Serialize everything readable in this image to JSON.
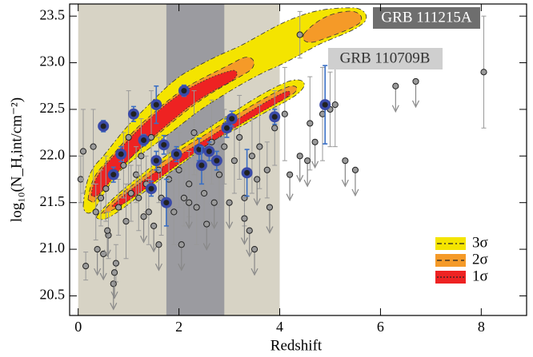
{
  "chart_data": {
    "type": "scatter",
    "xlabel": "Redshift",
    "ylabel": "log₁₀(N_H,int/cm⁻²)",
    "xlim": [
      -0.17,
      8.9
    ],
    "ylim": [
      20.29,
      23.63
    ],
    "xticks": [
      0,
      2,
      4,
      6,
      8
    ],
    "yticks": [
      20.5,
      {
        "value": 21,
        "label": "21.0"
      },
      21.5,
      {
        "value": 22,
        "label": "22.0"
      },
      22.5,
      {
        "value": 23,
        "label": "23.0"
      },
      23.5
    ],
    "bands": [
      {
        "x": [
          0,
          4
        ],
        "color": "#d7d3c5"
      },
      {
        "x": [
          1.75,
          2.9
        ],
        "color": "#9b9ba0"
      }
    ],
    "annotations": [
      "GRB 111215A",
      "GRB 110709B"
    ],
    "legend": [
      {
        "label": "3σ",
        "color": "#f4e400",
        "dash": "6 3 2 3"
      },
      {
        "label": "2σ",
        "color": "#f59a28",
        "dash": "6 4"
      },
      {
        "label": "1σ",
        "color": "#ee2222",
        "dash": "2 2"
      }
    ],
    "series": [
      {
        "color": "#9a9a9a",
        "x": [
          0.05,
          0.1,
          0.15,
          0.3,
          0.35,
          0.45,
          0.55,
          0.6,
          0.75,
          0.8,
          0.9,
          0.95,
          1.0,
          1.05,
          1.15,
          1.2,
          1.25,
          1.35,
          1.4,
          1.45,
          1.6,
          1.65,
          1.8,
          1.9,
          2.0,
          2.1,
          2.2,
          2.3,
          2.35,
          2.5,
          2.65,
          2.8,
          2.9,
          3.1,
          3.2,
          3.3,
          3.45,
          3.6,
          3.75,
          3.9,
          4.1,
          4.4,
          4.6,
          4.85,
          5.0,
          5.1,
          8.05
        ],
        "values": [
          21.75,
          22.05,
          20.82,
          22.1,
          21.4,
          21.55,
          21.65,
          21.15,
          20.85,
          21.45,
          21.9,
          21.3,
          22.2,
          21.6,
          21.8,
          21.55,
          22.0,
          21.7,
          21.4,
          22.2,
          21.85,
          21.55,
          21.75,
          21.4,
          21.85,
          21.55,
          21.7,
          22.25,
          21.45,
          21.6,
          22.15,
          21.8,
          22.1,
          21.95,
          22.2,
          21.55,
          22.0,
          22.1,
          21.85,
          22.3,
          22.45,
          23.3,
          22.35,
          22.45,
          22.5,
          22.55,
          22.9
        ],
        "errors": [
          0.25,
          0.45,
          0.15,
          0.4,
          0.3,
          0.3,
          0.35,
          0.25,
          0.2,
          0.3,
          0.35,
          0.4,
          0.5,
          0.3,
          0.3,
          0.35,
          0.4,
          0.3,
          0.35,
          0.5,
          0.35,
          0.4,
          0.3,
          0.35,
          0.4,
          0.3,
          0.35,
          0.45,
          0.4,
          0.3,
          0.45,
          0.35,
          0.4,
          0.35,
          0.45,
          0.3,
          0.4,
          0.45,
          0.3,
          0.4,
          0.5,
          0.25,
          0.5,
          0.5,
          0.4,
          0.45,
          0.6
        ]
      },
      {
        "color": "#9a9a9a",
        "upper_limit": true,
        "x": [
          0.38,
          0.5,
          0.58,
          0.7,
          0.72,
          1.3,
          1.5,
          1.6,
          2.05,
          2.2,
          2.55,
          2.7,
          3.0,
          3.3,
          3.4,
          3.5,
          3.55,
          3.8,
          4.2,
          4.4,
          4.55,
          4.7,
          5.3,
          5.5,
          6.3,
          6.7
        ],
        "values": [
          21.0,
          20.95,
          21.2,
          20.63,
          20.75,
          21.35,
          21.25,
          21.05,
          21.05,
          21.5,
          21.27,
          21.5,
          21.5,
          21.33,
          21.2,
          21.0,
          21.75,
          21.45,
          21.8,
          22.0,
          21.95,
          22.15,
          21.95,
          21.85,
          22.75,
          22.8
        ]
      },
      {
        "color": "#3a4aa8",
        "x": [
          0.5,
          0.7,
          0.85,
          1.1,
          1.3,
          1.45,
          1.55,
          1.55,
          1.7,
          1.75,
          1.95,
          2.1,
          2.4,
          2.45,
          2.6,
          2.75,
          2.95,
          3.05,
          3.35,
          3.9,
          4.9
        ],
        "values": [
          22.32,
          21.8,
          22.02,
          22.45,
          22.17,
          21.65,
          22.55,
          21.95,
          22.12,
          21.5,
          22.02,
          22.7,
          22.07,
          21.9,
          22.05,
          21.95,
          22.3,
          22.4,
          21.82,
          22.42,
          22.55
        ],
        "errors": [
          0.06,
          0.08,
          0.08,
          0.08,
          0.06,
          0.08,
          0.2,
          0.1,
          0.1,
          0.25,
          0.08,
          0.06,
          0.12,
          0.2,
          0.1,
          0.1,
          0.1,
          0.08,
          0.25,
          0.08,
          0.42
        ]
      }
    ]
  }
}
